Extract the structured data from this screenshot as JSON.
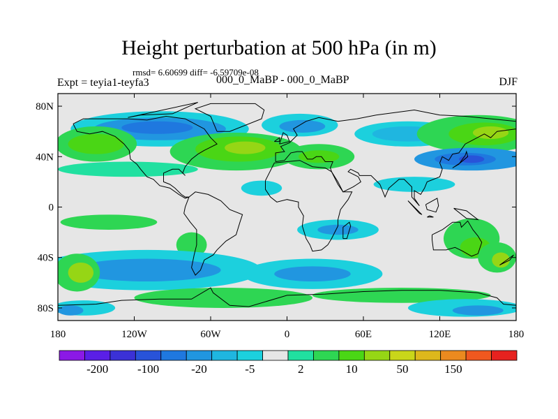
{
  "title": "Height perturbation at 500 hPa (in m)",
  "stats_text": "rmsd= 6.60699 diff= -6.59709e-08",
  "experiment": "Expt = teyia1-teyfa3",
  "period": "000_0_MaBP - 000_0_MaBP",
  "season": "DJF",
  "map": {
    "projection": "equirectangular",
    "lon_range": [
      -180,
      180
    ],
    "lat_range": [
      -90,
      90
    ],
    "lat_ticks": [
      {
        "lat": 80,
        "label": "80N"
      },
      {
        "lat": 40,
        "label": "40N"
      },
      {
        "lat": 0,
        "label": "0"
      },
      {
        "lat": -40,
        "label": "40S"
      },
      {
        "lat": -80,
        "label": "80S"
      }
    ],
    "lon_ticks": [
      {
        "lon": -180,
        "label": "180"
      },
      {
        "lon": -120,
        "label": "120W"
      },
      {
        "lon": -60,
        "label": "60W"
      },
      {
        "lon": 0,
        "label": "0"
      },
      {
        "lon": 60,
        "label": "60E"
      },
      {
        "lon": 120,
        "label": "120E"
      },
      {
        "lon": 180,
        "label": "180"
      }
    ],
    "background_color": "#e6e6e6",
    "coast_color": "#000000"
  },
  "colorbar": {
    "colors": [
      "#8b19e6",
      "#5a1fe6",
      "#3b31d6",
      "#2853d9",
      "#1f78df",
      "#2196e0",
      "#1fb6e0",
      "#1cd0dd",
      "#e6e6e6",
      "#21e0a0",
      "#2ed653",
      "#4ad615",
      "#96d615",
      "#c9d61a",
      "#ddb81c",
      "#eb8a1f",
      "#f0581f",
      "#e6221f"
    ],
    "labels": [
      "-200",
      "-100",
      "-20",
      "-5",
      "2",
      "10",
      "50",
      "150"
    ],
    "label_boundaries": [
      1,
      3,
      5,
      7,
      9,
      11,
      13,
      15
    ]
  },
  "blobs": [
    {
      "level": 7,
      "lon": -100,
      "lat": 62,
      "rx": 70,
      "ry": 14
    },
    {
      "level": 5,
      "lon": -100,
      "lat": 62,
      "rx": 52,
      "ry": 9
    },
    {
      "level": 4,
      "lon": -102,
      "lat": 63,
      "rx": 28,
      "ry": 5
    },
    {
      "level": 7,
      "lon": 10,
      "lat": 65,
      "rx": 30,
      "ry": 9
    },
    {
      "level": 5,
      "lon": 12,
      "lat": 64,
      "rx": 18,
      "ry": 5
    },
    {
      "level": 7,
      "lon": 95,
      "lat": 58,
      "rx": 42,
      "ry": 10
    },
    {
      "level": 6,
      "lon": 95,
      "lat": 58,
      "rx": 28,
      "ry": 6
    },
    {
      "level": 10,
      "lon": -150,
      "lat": 50,
      "rx": 32,
      "ry": 14
    },
    {
      "level": 11,
      "lon": -150,
      "lat": 50,
      "rx": 22,
      "ry": 8
    },
    {
      "level": 10,
      "lon": -40,
      "lat": 44,
      "rx": 52,
      "ry": 15
    },
    {
      "level": 11,
      "lon": -38,
      "lat": 46,
      "rx": 34,
      "ry": 10
    },
    {
      "level": 12,
      "lon": -33,
      "lat": 47,
      "rx": 16,
      "ry": 5
    },
    {
      "level": 10,
      "lon": 25,
      "lat": 40,
      "rx": 28,
      "ry": 10
    },
    {
      "level": 11,
      "lon": 25,
      "lat": 40,
      "rx": 16,
      "ry": 5
    },
    {
      "level": 10,
      "lon": 150,
      "lat": 58,
      "rx": 48,
      "ry": 15
    },
    {
      "level": 11,
      "lon": 155,
      "lat": 58,
      "rx": 28,
      "ry": 9
    },
    {
      "level": 12,
      "lon": 160,
      "lat": 59,
      "rx": 14,
      "ry": 5
    },
    {
      "level": 9,
      "lon": -125,
      "lat": 30,
      "rx": 55,
      "ry": 6
    },
    {
      "level": 5,
      "lon": 145,
      "lat": 38,
      "rx": 45,
      "ry": 9
    },
    {
      "level": 4,
      "lon": 140,
      "lat": 38,
      "rx": 24,
      "ry": 5
    },
    {
      "level": 3,
      "lon": 145,
      "lat": 38,
      "rx": 10,
      "ry": 3
    },
    {
      "level": 7,
      "lon": -20,
      "lat": 15,
      "rx": 16,
      "ry": 6
    },
    {
      "level": 7,
      "lon": 100,
      "lat": 18,
      "rx": 32,
      "ry": 6
    },
    {
      "level": 10,
      "lon": -140,
      "lat": -12,
      "rx": 38,
      "ry": 6
    },
    {
      "level": 10,
      "lon": -75,
      "lat": -30,
      "rx": 12,
      "ry": 10
    },
    {
      "level": 7,
      "lon": 40,
      "lat": -18,
      "rx": 32,
      "ry": 8
    },
    {
      "level": 5,
      "lon": 40,
      "lat": -18,
      "rx": 16,
      "ry": 4
    },
    {
      "level": 10,
      "lon": 145,
      "lat": -25,
      "rx": 22,
      "ry": 16
    },
    {
      "level": 11,
      "lon": 148,
      "lat": -32,
      "rx": 12,
      "ry": 8
    },
    {
      "level": 7,
      "lon": -110,
      "lat": -50,
      "rx": 90,
      "ry": 16
    },
    {
      "level": 5,
      "lon": -110,
      "lat": -50,
      "rx": 58,
      "ry": 9
    },
    {
      "level": 7,
      "lon": 20,
      "lat": -53,
      "rx": 55,
      "ry": 12
    },
    {
      "level": 5,
      "lon": 20,
      "lat": -53,
      "rx": 30,
      "ry": 6
    },
    {
      "level": 10,
      "lon": -165,
      "lat": -52,
      "rx": 18,
      "ry": 15
    },
    {
      "level": 12,
      "lon": -162,
      "lat": -52,
      "rx": 10,
      "ry": 8
    },
    {
      "level": 10,
      "lon": 165,
      "lat": -40,
      "rx": 15,
      "ry": 12
    },
    {
      "level": 12,
      "lon": 168,
      "lat": -42,
      "rx": 7,
      "ry": 6
    },
    {
      "level": 10,
      "lon": -50,
      "lat": -72,
      "rx": 70,
      "ry": 8
    },
    {
      "level": 10,
      "lon": 90,
      "lat": -70,
      "rx": 70,
      "ry": 6
    },
    {
      "level": 7,
      "lon": -160,
      "lat": -80,
      "rx": 25,
      "ry": 6
    },
    {
      "level": 5,
      "lon": -170,
      "lat": -82,
      "rx": 10,
      "ry": 4
    },
    {
      "level": 7,
      "lon": 140,
      "lat": -80,
      "rx": 45,
      "ry": 7
    },
    {
      "level": 5,
      "lon": 150,
      "lat": -82,
      "rx": 20,
      "ry": 4
    }
  ],
  "coastlines": [
    [
      [
        -168,
        66
      ],
      [
        -160,
        70
      ],
      [
        -140,
        70
      ],
      [
        -125,
        70
      ],
      [
        -110,
        69
      ],
      [
        -95,
        72
      ],
      [
        -80,
        70
      ],
      [
        -65,
        62
      ],
      [
        -60,
        55
      ],
      [
        -55,
        50
      ],
      [
        -65,
        45
      ],
      [
        -70,
        42
      ],
      [
        -75,
        38
      ],
      [
        -80,
        32
      ],
      [
        -82,
        27
      ],
      [
        -80,
        25
      ],
      [
        -85,
        30
      ],
      [
        -90,
        30
      ],
      [
        -97,
        27
      ],
      [
        -97,
        20
      ],
      [
        -92,
        18
      ],
      [
        -88,
        15
      ],
      [
        -83,
        10
      ],
      [
        -80,
        8
      ],
      [
        -77,
        8
      ],
      [
        -80,
        7
      ],
      [
        -85,
        10
      ],
      [
        -92,
        15
      ],
      [
        -100,
        17
      ],
      [
        -105,
        22
      ],
      [
        -110,
        24
      ],
      [
        -115,
        30
      ],
      [
        -118,
        34
      ],
      [
        -123,
        38
      ],
      [
        -124,
        45
      ],
      [
        -128,
        50
      ],
      [
        -135,
        56
      ],
      [
        -145,
        60
      ],
      [
        -155,
        58
      ],
      [
        -165,
        60
      ],
      [
        -168,
        66
      ]
    ],
    [
      [
        -77,
        8
      ],
      [
        -72,
        12
      ],
      [
        -62,
        10
      ],
      [
        -52,
        5
      ],
      [
        -45,
        -2
      ],
      [
        -35,
        -6
      ],
      [
        -37,
        -12
      ],
      [
        -40,
        -22
      ],
      [
        -48,
        -27
      ],
      [
        -55,
        -34
      ],
      [
        -58,
        -38
      ],
      [
        -65,
        -42
      ],
      [
        -68,
        -50
      ],
      [
        -72,
        -54
      ],
      [
        -75,
        -48
      ],
      [
        -73,
        -38
      ],
      [
        -71,
        -30
      ],
      [
        -71,
        -18
      ],
      [
        -76,
        -12
      ],
      [
        -81,
        -5
      ],
      [
        -80,
        0
      ],
      [
        -77,
        8
      ]
    ],
    [
      [
        -9,
        36
      ],
      [
        -9,
        43
      ],
      [
        -2,
        44
      ],
      [
        -5,
        48
      ],
      [
        2,
        51
      ],
      [
        5,
        54
      ],
      [
        8,
        57
      ],
      [
        5,
        62
      ],
      [
        15,
        68
      ],
      [
        25,
        71
      ],
      [
        40,
        68
      ],
      [
        55,
        70
      ],
      [
        70,
        73
      ],
      [
        100,
        77
      ],
      [
        120,
        73
      ],
      [
        140,
        72
      ],
      [
        160,
        70
      ],
      [
        180,
        68
      ],
      [
        180,
        62
      ],
      [
        165,
        60
      ],
      [
        160,
        55
      ],
      [
        155,
        58
      ],
      [
        140,
        50
      ],
      [
        135,
        43
      ],
      [
        130,
        42
      ],
      [
        127,
        37
      ],
      [
        122,
        40
      ],
      [
        120,
        35
      ],
      [
        122,
        30
      ],
      [
        120,
        24
      ],
      [
        110,
        20
      ],
      [
        108,
        15
      ],
      [
        105,
        10
      ],
      [
        100,
        13
      ],
      [
        100,
        7
      ],
      [
        104,
        1
      ],
      [
        98,
        8
      ],
      [
        98,
        16
      ],
      [
        92,
        22
      ],
      [
        88,
        22
      ],
      [
        80,
        15
      ],
      [
        77,
        8
      ],
      [
        73,
        18
      ],
      [
        70,
        21
      ],
      [
        66,
        25
      ],
      [
        57,
        25
      ],
      [
        56,
        27
      ],
      [
        50,
        30
      ],
      [
        48,
        28
      ],
      [
        56,
        24
      ],
      [
        58,
        20
      ],
      [
        52,
        16
      ],
      [
        44,
        12
      ],
      [
        40,
        20
      ],
      [
        35,
        28
      ],
      [
        34,
        31
      ],
      [
        36,
        36
      ],
      [
        30,
        36
      ],
      [
        27,
        40
      ],
      [
        23,
        40
      ],
      [
        20,
        38
      ],
      [
        16,
        38
      ],
      [
        12,
        44
      ],
      [
        8,
        44
      ],
      [
        3,
        43
      ],
      [
        -2,
        37
      ],
      [
        -9,
        36
      ]
    ],
    [
      [
        -17,
        21
      ],
      [
        -10,
        35
      ],
      [
        0,
        36
      ],
      [
        10,
        37
      ],
      [
        20,
        32
      ],
      [
        30,
        31
      ],
      [
        35,
        28
      ],
      [
        40,
        18
      ],
      [
        44,
        12
      ],
      [
        51,
        12
      ],
      [
        48,
        6
      ],
      [
        42,
        -2
      ],
      [
        40,
        -10
      ],
      [
        40,
        -15
      ],
      [
        35,
        -25
      ],
      [
        32,
        -30
      ],
      [
        27,
        -34
      ],
      [
        20,
        -35
      ],
      [
        18,
        -30
      ],
      [
        15,
        -25
      ],
      [
        12,
        -15
      ],
      [
        13,
        -7
      ],
      [
        9,
        0
      ],
      [
        9,
        4
      ],
      [
        0,
        6
      ],
      [
        -8,
        4
      ],
      [
        -13,
        8
      ],
      [
        -17,
        14
      ],
      [
        -17,
        21
      ]
    ],
    [
      [
        114,
        -22
      ],
      [
        122,
        -18
      ],
      [
        130,
        -12
      ],
      [
        136,
        -12
      ],
      [
        137,
        -16
      ],
      [
        142,
        -11
      ],
      [
        146,
        -18
      ],
      [
        150,
        -23
      ],
      [
        153,
        -28
      ],
      [
        150,
        -37
      ],
      [
        145,
        -39
      ],
      [
        138,
        -35
      ],
      [
        132,
        -32
      ],
      [
        125,
        -34
      ],
      [
        115,
        -34
      ],
      [
        114,
        -26
      ],
      [
        114,
        -22
      ]
    ],
    [
      [
        -55,
        60
      ],
      [
        -45,
        60
      ],
      [
        -20,
        70
      ],
      [
        -18,
        77
      ],
      [
        -25,
        82
      ],
      [
        -60,
        82
      ],
      [
        -72,
        78
      ],
      [
        -60,
        72
      ],
      [
        -55,
        60
      ]
    ],
    [
      [
        -180,
        -78
      ],
      [
        -150,
        -77
      ],
      [
        -130,
        -74
      ],
      [
        -100,
        -73
      ],
      [
        -75,
        -73
      ],
      [
        -60,
        -64
      ],
      [
        -58,
        -68
      ],
      [
        -45,
        -78
      ],
      [
        -30,
        -79
      ],
      [
        0,
        -70
      ],
      [
        30,
        -69
      ],
      [
        60,
        -67
      ],
      [
        90,
        -66
      ],
      [
        120,
        -66
      ],
      [
        150,
        -68
      ],
      [
        165,
        -72
      ],
      [
        170,
        -77
      ],
      [
        180,
        -78
      ]
    ],
    [
      [
        44,
        -25
      ],
      [
        47,
        -25
      ],
      [
        50,
        -15
      ],
      [
        49,
        -12
      ],
      [
        44,
        -16
      ],
      [
        44,
        -25
      ]
    ],
    [
      [
        95,
        5
      ],
      [
        106,
        -6
      ],
      [
        104,
        -5
      ],
      [
        95,
        5
      ]
    ],
    [
      [
        110,
        -8
      ],
      [
        115,
        -8
      ],
      [
        112,
        -7
      ],
      [
        110,
        -8
      ]
    ],
    [
      [
        109,
        2
      ],
      [
        118,
        7
      ],
      [
        119,
        1
      ],
      [
        117,
        -4
      ],
      [
        110,
        -2
      ],
      [
        109,
        2
      ]
    ],
    [
      [
        131,
        -1
      ],
      [
        141,
        -3
      ],
      [
        150,
        -10
      ],
      [
        141,
        -9
      ],
      [
        131,
        -1
      ]
    ],
    [
      [
        130,
        31
      ],
      [
        136,
        35
      ],
      [
        142,
        40
      ],
      [
        141,
        44
      ],
      [
        140,
        41
      ],
      [
        135,
        34
      ],
      [
        130,
        31
      ]
    ],
    [
      [
        -6,
        50
      ],
      [
        -3,
        59
      ],
      [
        0,
        57
      ],
      [
        2,
        52
      ],
      [
        -6,
        50
      ]
    ],
    [
      [
        -10,
        52
      ],
      [
        -6,
        55
      ],
      [
        -6,
        52
      ],
      [
        -10,
        52
      ]
    ],
    [
      [
        167,
        -46
      ],
      [
        174,
        -41
      ],
      [
        178,
        -38
      ],
      [
        175,
        -42
      ],
      [
        167,
        -46
      ]
    ],
    [
      [
        -125,
        71
      ],
      [
        -70,
        83
      ],
      [
        -90,
        74
      ],
      [
        -115,
        73
      ],
      [
        -125,
        71
      ]
    ]
  ]
}
